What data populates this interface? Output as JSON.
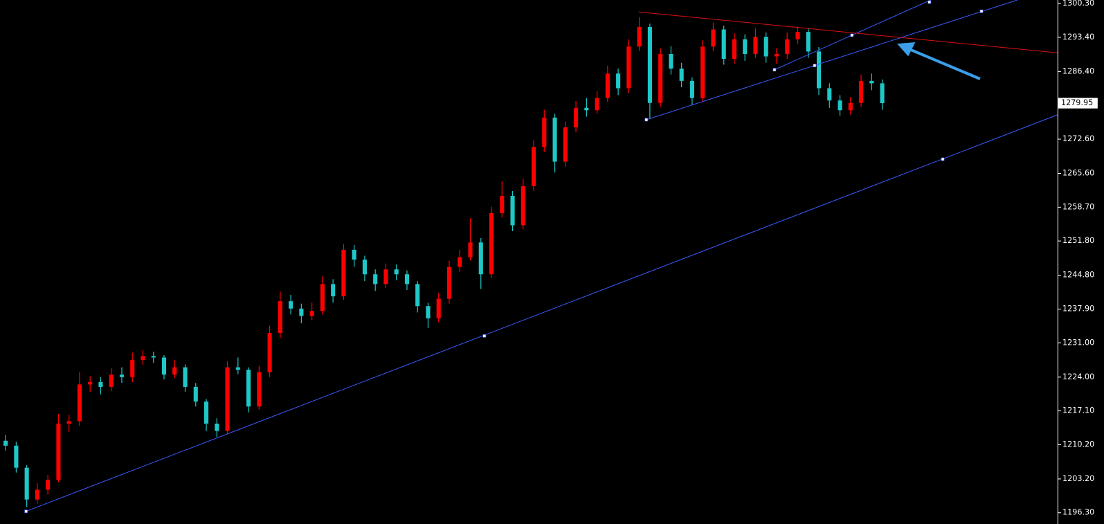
{
  "chart_data": {
    "type": "candlestick",
    "up_color": "#ff0000",
    "down_color": "#1fc8c8",
    "ylim": [
      1194.0,
      1301.02
    ],
    "yticks": [
      {
        "value": 1300.3,
        "label": "1300.30"
      },
      {
        "value": 1293.4,
        "label": "1293.40"
      },
      {
        "value": 1286.4,
        "label": "1286.40"
      },
      {
        "value": 1272.6,
        "label": "1272.60"
      },
      {
        "value": 1265.6,
        "label": "1265.60"
      },
      {
        "value": 1258.7,
        "label": "1258.70"
      },
      {
        "value": 1251.8,
        "label": "1251.80"
      },
      {
        "value": 1244.8,
        "label": "1244.80"
      },
      {
        "value": 1237.9,
        "label": "1237.90"
      },
      {
        "value": 1231,
        "label": "1231.00"
      },
      {
        "value": 1224,
        "label": "1224.00"
      },
      {
        "value": 1217.1,
        "label": "1217.10"
      },
      {
        "value": 1210.2,
        "label": "1210.20"
      },
      {
        "value": 1203.2,
        "label": "1203.20"
      },
      {
        "value": 1196.3,
        "label": "1196.30"
      }
    ],
    "last_price": {
      "value": 1279.95,
      "label": "1279.95"
    },
    "candles": [
      [
        1211.0,
        1212.2,
        1209.0,
        1210.0
      ],
      [
        1210.0,
        1210.8,
        1204.5,
        1205.5
      ],
      [
        1205.5,
        1206.0,
        1197.5,
        1199.0
      ],
      [
        1199.0,
        1202.3,
        1198.2,
        1201.0
      ],
      [
        1201.0,
        1204.0,
        1200.0,
        1203.0
      ],
      [
        1203.0,
        1216.5,
        1202.5,
        1214.5
      ],
      [
        1214.5,
        1216.3,
        1212.8,
        1215.0
      ],
      [
        1215.0,
        1225.0,
        1214.0,
        1222.5
      ],
      [
        1222.5,
        1224.2,
        1221.0,
        1223.0
      ],
      [
        1223.0,
        1224.0,
        1220.5,
        1222.0
      ],
      [
        1222.0,
        1225.8,
        1221.2,
        1224.5
      ],
      [
        1224.5,
        1226.0,
        1222.8,
        1224.0
      ],
      [
        1224.0,
        1229.0,
        1223.0,
        1227.5
      ],
      [
        1227.5,
        1229.5,
        1226.5,
        1228.3
      ],
      [
        1228.3,
        1229.2,
        1226.9,
        1228.0
      ],
      [
        1228.0,
        1228.5,
        1223.5,
        1224.5
      ],
      [
        1224.5,
        1227.5,
        1223.8,
        1226.0
      ],
      [
        1226.0,
        1226.6,
        1221.0,
        1222.0
      ],
      [
        1222.0,
        1222.8,
        1218.0,
        1219.0
      ],
      [
        1219.0,
        1219.5,
        1213.0,
        1214.5
      ],
      [
        1214.5,
        1215.6,
        1211.8,
        1213.0
      ],
      [
        1213.0,
        1227.2,
        1212.5,
        1226.0
      ],
      [
        1226.0,
        1228.0,
        1224.6,
        1225.5
      ],
      [
        1225.5,
        1226.0,
        1216.8,
        1218.0
      ],
      [
        1218.0,
        1226.3,
        1217.4,
        1225.0
      ],
      [
        1225.0,
        1234.5,
        1224.0,
        1233.0
      ],
      [
        1233.0,
        1241.5,
        1232.0,
        1239.5
      ],
      [
        1239.5,
        1240.8,
        1236.8,
        1238.0
      ],
      [
        1238.0,
        1239.0,
        1235.0,
        1236.5
      ],
      [
        1236.5,
        1239.2,
        1235.6,
        1237.5
      ],
      [
        1237.5,
        1244.6,
        1236.8,
        1243.0
      ],
      [
        1243.0,
        1244.0,
        1239.2,
        1240.5
      ],
      [
        1240.5,
        1251.2,
        1239.8,
        1250.0
      ],
      [
        1250.0,
        1251.0,
        1246.5,
        1248.0
      ],
      [
        1248.0,
        1248.8,
        1243.6,
        1245.0
      ],
      [
        1245.0,
        1246.0,
        1241.6,
        1243.0
      ],
      [
        1243.0,
        1247.2,
        1242.2,
        1246.0
      ],
      [
        1246.0,
        1247.0,
        1243.8,
        1245.0
      ],
      [
        1245.0,
        1245.8,
        1241.8,
        1243.0
      ],
      [
        1243.0,
        1243.6,
        1237.2,
        1238.5
      ],
      [
        1238.5,
        1239.2,
        1234.0,
        1236.0
      ],
      [
        1236.0,
        1241.2,
        1235.2,
        1240.0
      ],
      [
        1240.0,
        1247.8,
        1239.0,
        1246.5
      ],
      [
        1246.5,
        1250.0,
        1245.5,
        1248.5
      ],
      [
        1248.5,
        1256.5,
        1247.8,
        1251.5
      ],
      [
        1251.5,
        1252.4,
        1242.0,
        1245.0
      ],
      [
        1245.0,
        1258.8,
        1244.2,
        1257.5
      ],
      [
        1257.5,
        1264.0,
        1256.6,
        1261.0
      ],
      [
        1261.0,
        1262.0,
        1253.8,
        1255.0
      ],
      [
        1255.0,
        1264.5,
        1254.2,
        1263.0
      ],
      [
        1263.0,
        1272.4,
        1262.0,
        1271.0
      ],
      [
        1271.0,
        1278.6,
        1270.0,
        1277.0
      ],
      [
        1277.0,
        1277.8,
        1265.8,
        1268.0
      ],
      [
        1268.0,
        1276.2,
        1267.0,
        1275.0
      ],
      [
        1275.0,
        1280.4,
        1274.0,
        1279.0
      ],
      [
        1279.0,
        1281.0,
        1277.2,
        1278.5
      ],
      [
        1278.5,
        1282.4,
        1277.8,
        1281.0
      ],
      [
        1281.0,
        1287.6,
        1280.2,
        1286.0
      ],
      [
        1286.0,
        1287.0,
        1281.6,
        1283.0
      ],
      [
        1283.0,
        1293.0,
        1282.0,
        1291.5
      ],
      [
        1291.5,
        1297.5,
        1290.6,
        1295.5
      ],
      [
        1295.5,
        1296.2,
        1276.8,
        1280.0
      ],
      [
        1280.0,
        1291.2,
        1279.2,
        1290.0
      ],
      [
        1290.0,
        1291.6,
        1285.8,
        1287.0
      ],
      [
        1287.0,
        1288.2,
        1283.2,
        1284.5
      ],
      [
        1284.5,
        1285.2,
        1279.5,
        1281.0
      ],
      [
        1281.0,
        1292.8,
        1280.2,
        1291.5
      ],
      [
        1291.5,
        1296.4,
        1290.6,
        1295.0
      ],
      [
        1295.0,
        1295.8,
        1287.8,
        1289.0
      ],
      [
        1289.0,
        1294.2,
        1288.0,
        1293.0
      ],
      [
        1293.0,
        1294.0,
        1288.6,
        1290.0
      ],
      [
        1290.0,
        1295.2,
        1289.2,
        1293.5
      ],
      [
        1293.5,
        1294.4,
        1288.2,
        1289.5
      ],
      [
        1289.5,
        1291.2,
        1288.0,
        1290.0
      ],
      [
        1290.0,
        1294.4,
        1289.0,
        1293.0
      ],
      [
        1293.0,
        1295.6,
        1292.0,
        1294.5
      ],
      [
        1294.5,
        1295.2,
        1289.2,
        1290.5
      ],
      [
        1290.5,
        1291.4,
        1281.6,
        1283.0
      ],
      [
        1283.0,
        1284.0,
        1279.0,
        1280.5
      ],
      [
        1280.5,
        1281.6,
        1277.4,
        1278.5
      ],
      [
        1278.5,
        1281.2,
        1277.6,
        1280.0
      ],
      [
        1280.0,
        1285.8,
        1279.2,
        1284.5
      ],
      [
        1284.5,
        1286.0,
        1282.6,
        1284.0
      ],
      [
        1284.0,
        1284.8,
        1278.6,
        1279.95
      ]
    ]
  }
}
